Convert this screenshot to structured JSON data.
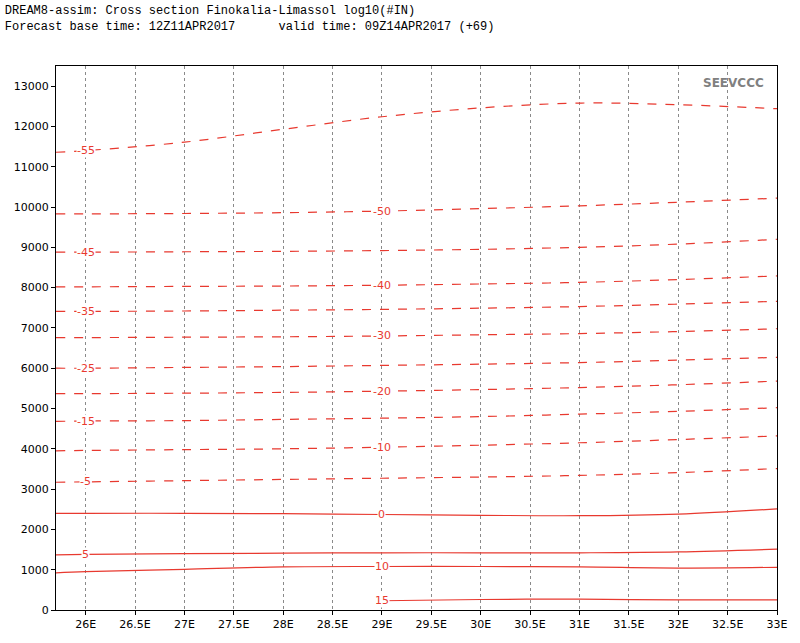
{
  "chart_data": {
    "type": "line",
    "title": "DREAM8-assim: Cross section Finokalia-Limassol log10(#IN)",
    "subtitle": "Forecast base time: 12Z11APR2017      valid time: 09Z14APR2017 (+69)",
    "annotations": [
      "SEEVCCC"
    ],
    "color": "#e8392f",
    "grid": "x",
    "x": [
      25.7,
      26,
      27,
      28,
      29,
      30,
      31,
      32,
      33
    ],
    "xlim": [
      25.7,
      33
    ],
    "xticks": [
      {
        "value": 26,
        "label": "26E"
      },
      {
        "value": 26.5,
        "label": "26.5E"
      },
      {
        "value": 27,
        "label": "27E"
      },
      {
        "value": 27.5,
        "label": "27.5E"
      },
      {
        "value": 28,
        "label": "28E"
      },
      {
        "value": 28.5,
        "label": "28.5E"
      },
      {
        "value": 29,
        "label": "29E"
      },
      {
        "value": 29.5,
        "label": "29.5E"
      },
      {
        "value": 30,
        "label": "30E"
      },
      {
        "value": 30.5,
        "label": "30.5E"
      },
      {
        "value": 31,
        "label": "31E"
      },
      {
        "value": 31.5,
        "label": "31.5E"
      },
      {
        "value": 32,
        "label": "32E"
      },
      {
        "value": 32.5,
        "label": "32.5E"
      },
      {
        "value": 33,
        "label": "33E"
      }
    ],
    "ylim": [
      0,
      13500
    ],
    "yticks": [
      0,
      1000,
      2000,
      3000,
      4000,
      5000,
      6000,
      7000,
      8000,
      9000,
      10000,
      11000,
      12000,
      13000
    ],
    "series": [
      {
        "name": "-55",
        "line_style": "dash",
        "values": [
          11360,
          11400,
          11610,
          11930,
          12240,
          12460,
          12580,
          12540,
          12440
        ]
      },
      {
        "name": "-50",
        "line_style": "dash",
        "values": [
          9830,
          9830,
          9840,
          9860,
          9900,
          9960,
          10030,
          10120,
          10220
        ]
      },
      {
        "name": "-45",
        "line_style": "dash",
        "values": [
          8880,
          8880,
          8890,
          8900,
          8920,
          8950,
          9000,
          9080,
          9200
        ]
      },
      {
        "name": "-40",
        "line_style": "dash",
        "values": [
          8020,
          8020,
          8030,
          8040,
          8060,
          8090,
          8130,
          8200,
          8290
        ]
      },
      {
        "name": "-35",
        "line_style": "dash",
        "values": [
          7410,
          7410,
          7420,
          7440,
          7460,
          7490,
          7530,
          7590,
          7660
        ]
      },
      {
        "name": "-30",
        "line_style": "dash",
        "values": [
          6760,
          6760,
          6770,
          6780,
          6800,
          6830,
          6860,
          6910,
          6980
        ]
      },
      {
        "name": "-25",
        "line_style": "dash",
        "values": [
          6000,
          6000,
          6020,
          6040,
          6070,
          6100,
          6140,
          6200,
          6270
        ]
      },
      {
        "name": "-20",
        "line_style": "dash",
        "values": [
          5370,
          5370,
          5380,
          5400,
          5430,
          5470,
          5520,
          5590,
          5680
        ]
      },
      {
        "name": "-15",
        "line_style": "dash",
        "values": [
          4680,
          4690,
          4700,
          4730,
          4760,
          4800,
          4860,
          4930,
          5020
        ]
      },
      {
        "name": "-10",
        "line_style": "dash",
        "values": [
          3950,
          3960,
          3980,
          4000,
          4040,
          4090,
          4150,
          4230,
          4320
        ]
      },
      {
        "name": "-5",
        "line_style": "dash",
        "values": [
          3170,
          3180,
          3210,
          3240,
          3270,
          3300,
          3340,
          3410,
          3510
        ]
      },
      {
        "name": "0",
        "line_style": "solid",
        "values": [
          2400,
          2400,
          2400,
          2390,
          2370,
          2350,
          2340,
          2380,
          2510
        ]
      },
      {
        "name": "5",
        "line_style": "solid",
        "values": [
          1370,
          1380,
          1400,
          1410,
          1420,
          1420,
          1420,
          1440,
          1510
        ]
      },
      {
        "name": "10",
        "line_style": "solid",
        "values": [
          920,
          950,
          1010,
          1070,
          1080,
          1080,
          1070,
          1040,
          1060
        ]
      },
      {
        "name": "15",
        "line_style": "solid",
        "values": [
          null,
          null,
          null,
          null,
          230,
          260,
          270,
          250,
          250
        ]
      }
    ]
  }
}
